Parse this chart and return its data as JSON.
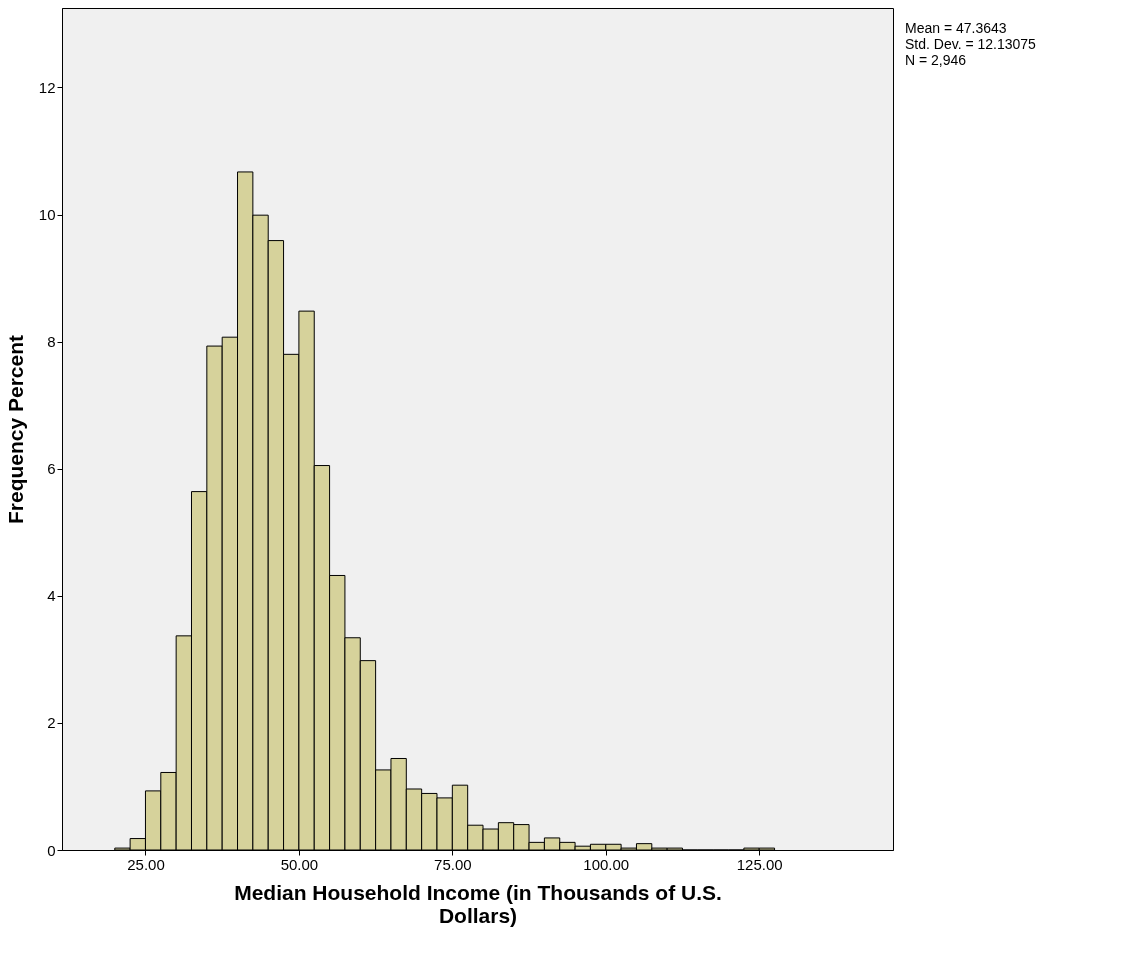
{
  "chart_data": {
    "type": "histogram",
    "xlabel": "Median Household Income (in Thousands of U.S. Dollars)",
    "ylabel": "Frequency Percent",
    "bins": [
      20,
      22.5,
      25,
      27.5,
      30,
      32.5,
      35,
      37.5,
      40,
      42.5,
      45,
      47.5,
      50,
      52.5,
      55,
      57.5,
      60,
      62.5,
      65,
      67.5,
      70,
      72.5,
      75,
      77.5,
      80,
      82.5,
      85,
      87.5,
      90,
      92.5,
      95,
      97.5,
      100,
      102.5,
      105,
      107.5,
      110,
      112.5,
      115,
      117.5,
      120,
      122.5,
      125,
      127.5
    ],
    "values": [
      0.03,
      0.18,
      0.93,
      1.22,
      3.37,
      5.64,
      7.93,
      8.07,
      10.67,
      9.99,
      9.59,
      7.8,
      8.48,
      6.05,
      4.32,
      3.34,
      2.98,
      1.26,
      1.44,
      0.96,
      0.89,
      0.82,
      1.02,
      0.39,
      0.33,
      0.43,
      0.4,
      0.12,
      0.19,
      0.12,
      0.06,
      0.09,
      0.09,
      0.03,
      0.1,
      0.03,
      0.03,
      0,
      0,
      0,
      0,
      0.03,
      0.03
    ],
    "color": "#d6d29b",
    "xlim": [
      11.4,
      146.8
    ],
    "ylim": [
      0,
      13.25
    ],
    "xticks": [
      {
        "value": 25,
        "label": "25.00"
      },
      {
        "value": 50,
        "label": "50.00"
      },
      {
        "value": 75,
        "label": "75.00"
      },
      {
        "value": 100,
        "label": "100.00"
      },
      {
        "value": 125,
        "label": "125.00"
      }
    ],
    "yticks": [
      0,
      2,
      4,
      6,
      8,
      10,
      12
    ],
    "grid": false,
    "annotations": [
      "Mean = 47.3643",
      "Std. Dev. = 12.13075",
      "N = 2,946"
    ]
  }
}
